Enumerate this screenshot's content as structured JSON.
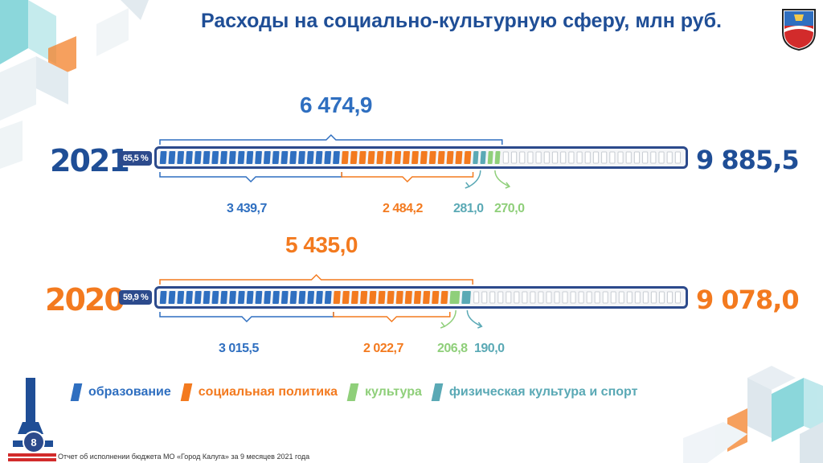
{
  "title": "Расходы на социально-культурную сферу, млн руб.",
  "colors": {
    "education": "#2f6fc0",
    "social": "#f37a1f",
    "culture": "#8fcf7a",
    "sport": "#5aa9b5",
    "navy": "#1f4e96",
    "orange": "#f37a1f"
  },
  "chart_data": {
    "type": "bar",
    "title": "Расходы на социально-культурную сферу, млн руб.",
    "categories": [
      "2021",
      "2020"
    ],
    "series": [
      {
        "name": "образование",
        "values": [
          3439.7,
          3015.5
        ]
      },
      {
        "name": "социальная политика",
        "values": [
          2484.2,
          2022.7
        ]
      },
      {
        "name": "культура",
        "values": [
          270.0,
          206.8
        ]
      },
      {
        "name": "физическая культура и спорт",
        "values": [
          281.0,
          190.0
        ]
      }
    ],
    "totals": [
      9885.5,
      9078.0
    ],
    "social_sphere_sums": [
      6474.9,
      5435.0
    ],
    "shares": [
      "65,5 %",
      "59,9 %"
    ],
    "rows": [
      {
        "year": "2021",
        "share": "65,5 %",
        "total": "9 885,5",
        "sum": "6 474,9",
        "education": "3 439,7",
        "social": "2 484,2",
        "sport": "281,0",
        "culture": "270,0",
        "order": [
          "sport",
          "culture"
        ]
      },
      {
        "year": "2020",
        "share": "59,9 %",
        "total": "9 078,0",
        "sum": "5 435,0",
        "education": "3 015,5",
        "social": "2 022,7",
        "culture": "206,8",
        "sport": "190,0",
        "order": [
          "culture",
          "sport"
        ]
      }
    ]
  },
  "legend": [
    {
      "label": "образование",
      "color": "#2f6fc0"
    },
    {
      "label": "социальная политика",
      "color": "#f37a1f"
    },
    {
      "label": "культура",
      "color": "#8fcf7a"
    },
    {
      "label": "физическая культура и спорт",
      "color": "#5aa9b5"
    }
  ],
  "page_number": "8",
  "footer": "Отчет об исполнении бюджета МО «Город Калуга» за 9 месяцев 2021 года",
  "icons": {
    "emblem": "kaluga-coat-of-arms-icon",
    "monument": "monument-icon"
  }
}
